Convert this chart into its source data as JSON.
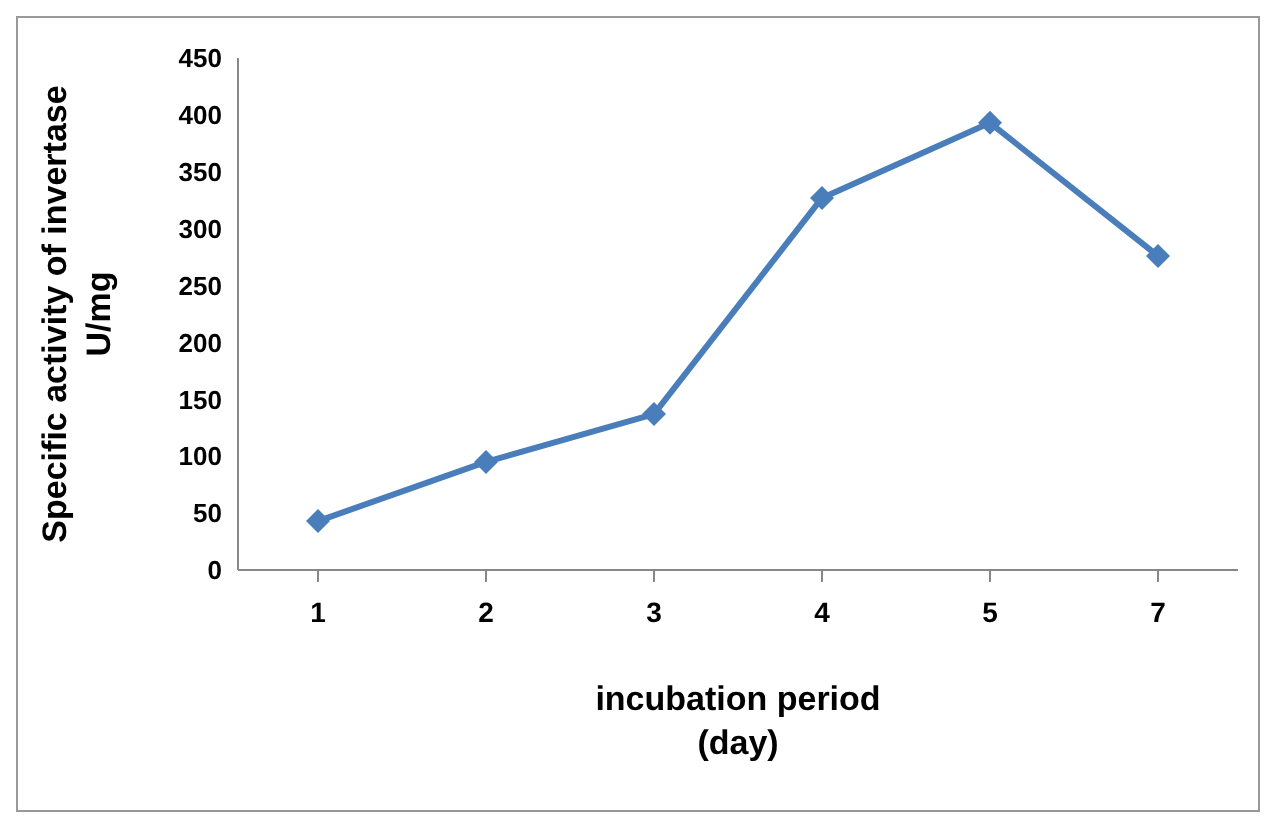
{
  "chart_data": {
    "type": "line",
    "xlabel": "incubation period\n(day)",
    "ylabel": "Specific activity of invertase\nU/mg",
    "categories": [
      "1",
      "2",
      "3",
      "4",
      "5",
      "7"
    ],
    "series": [
      {
        "color": "#4a7ebb",
        "values": [
          43,
          95,
          137,
          327,
          393,
          276
        ]
      }
    ],
    "ylim": [
      0,
      450
    ],
    "yticks": [
      0,
      50,
      100,
      150,
      200,
      250,
      300,
      350,
      400,
      450
    ],
    "grid": false,
    "legend": false,
    "marker": "diamond",
    "line_style": "solid"
  }
}
